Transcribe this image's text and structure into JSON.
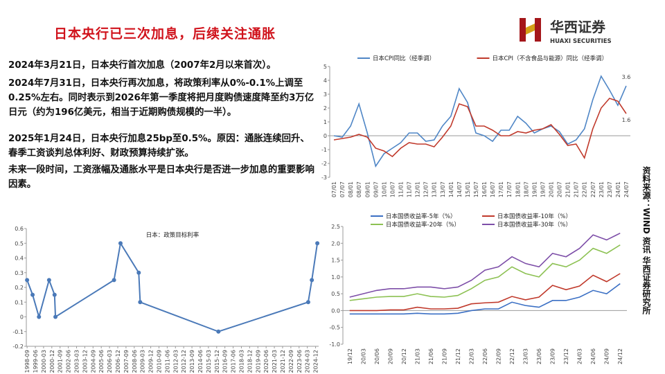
{
  "header": {
    "title": "日本央行已三次加息，后续关注通胀",
    "logo_cn": "华西证券",
    "logo_en": "HUAXI SECURITIES"
  },
  "paragraphs": [
    "2024年3月21日，日本央行首次加息（2007年2月以来首次）。",
    "2024年7月31日，日本央行再次加息，将政策利率从0%-0.1%上调至0.25%左右。同时表示到2026年第一季度将把月度购债速度降至约3万亿日元（约为196亿美元，相当于近期购债规模的一半）。",
    "2025年1月24日，日本央行加息25bp至0.5%。原因：通胀连续回升、春季工资谈判总体利好、财政预算持续扩张。",
    "未来一段时间，工资涨幅及通胀水平是日本央行是否进一步加息的重要影响因素。"
  ],
  "source": "资料来源：WIND 资讯  华西证券研究所",
  "chart_data": [
    {
      "type": "line",
      "legend": "top",
      "categories": [
        "07/01",
        "07/07",
        "08/01",
        "08/07",
        "09/01",
        "09/07",
        "10/01",
        "10/07",
        "11/01",
        "11/07",
        "12/01",
        "12/07",
        "13/01",
        "13/07",
        "14/01",
        "14/07",
        "15/01",
        "15/07",
        "16/01",
        "16/07",
        "17/01",
        "17/07",
        "18/01",
        "18/07",
        "19/01",
        "19/07",
        "20/01",
        "20/07",
        "21/01",
        "21/07",
        "22/01",
        "22/07",
        "23/01",
        "23/07",
        "24/01",
        "24/07"
      ],
      "series": [
        {
          "name": "日本CPI同比（经季调）",
          "color": "#4f86c6",
          "values": [
            0,
            -0.1,
            0.7,
            2.3,
            0.2,
            -2.2,
            -1.3,
            -0.9,
            -0.5,
            0.2,
            0.2,
            -0.4,
            -0.3,
            0.7,
            1.4,
            3.4,
            2.4,
            0.2,
            0,
            -0.4,
            0.4,
            0.4,
            1.4,
            0.9,
            0.2,
            0.5,
            0.7,
            0.3,
            -0.6,
            -0.3,
            0.5,
            2.6,
            4.3,
            3.3,
            2.2,
            3.6
          ]
        },
        {
          "name": "日本CPI（不含食品与能源）同比（经季调）",
          "color": "#c0392b",
          "values": [
            -0.3,
            -0.2,
            -0.1,
            0.1,
            -0.1,
            -0.9,
            -1.1,
            -1.5,
            -0.9,
            -0.5,
            -0.6,
            -0.6,
            -0.8,
            -0.1,
            0.7,
            2.3,
            2.1,
            0.7,
            0.7,
            0.4,
            0,
            0,
            0.3,
            0.2,
            0.4,
            0.5,
            0.8,
            0.1,
            -0.7,
            -0.6,
            -1.6,
            0.5,
            2.0,
            2.7,
            2.5,
            1.6
          ]
        }
      ],
      "annotations": [
        "3.6",
        "1.6"
      ],
      "ylim": [
        -3,
        5
      ],
      "yticks": [
        -3,
        -2,
        -1,
        0,
        1,
        2,
        3,
        4,
        5
      ],
      "grid": false
    },
    {
      "type": "line",
      "title": "日本：政策目标利率",
      "color": "#4a79b8",
      "markers": true,
      "x": [
        1998.67,
        1999.17,
        1999.75,
        2000.67,
        2001.17,
        2001.25,
        2006.58,
        2007.17,
        2008.83,
        2008.96,
        2016.08,
        2024.25,
        2024.58,
        2025.08
      ],
      "values": [
        0.25,
        0.15,
        0,
        0.25,
        0.15,
        0,
        0.25,
        0.5,
        0.3,
        0.1,
        -0.1,
        0.1,
        0.25,
        0.5
      ],
      "xlim": [
        1998.6,
        2025.2
      ],
      "xticks": [
        {
          "value": 1998.67,
          "label": "1998-09"
        },
        {
          "value": 1999.42,
          "label": "1999-06"
        },
        {
          "value": 2000.17,
          "label": "2000-03"
        },
        {
          "value": 2000.92,
          "label": "2000-12"
        },
        {
          "value": 2001.67,
          "label": "2001-09"
        },
        {
          "value": 2002.42,
          "label": "2002-06"
        },
        {
          "value": 2003.17,
          "label": "2003-03"
        },
        {
          "value": 2003.92,
          "label": "2003-12"
        },
        {
          "value": 2004.67,
          "label": "2004-09"
        },
        {
          "value": 2005.42,
          "label": "2005-06"
        },
        {
          "value": 2006.17,
          "label": "2006-03"
        },
        {
          "value": 2006.92,
          "label": "2006-12"
        },
        {
          "value": 2007.67,
          "label": "2007-09"
        },
        {
          "value": 2008.42,
          "label": "2008-06"
        },
        {
          "value": 2009.17,
          "label": "2009-03"
        },
        {
          "value": 2009.92,
          "label": "2009-12"
        },
        {
          "value": 2010.67,
          "label": "2010-09"
        },
        {
          "value": 2011.42,
          "label": "2011-06"
        },
        {
          "value": 2012.17,
          "label": "2012-03"
        },
        {
          "value": 2012.92,
          "label": "2012-12"
        },
        {
          "value": 2013.67,
          "label": "2013-09"
        },
        {
          "value": 2014.42,
          "label": "2014-06"
        },
        {
          "value": 2015.17,
          "label": "2015-03"
        },
        {
          "value": 2015.92,
          "label": "2015-12"
        },
        {
          "value": 2016.67,
          "label": "2016-09"
        },
        {
          "value": 2017.42,
          "label": "2017-06"
        },
        {
          "value": 2018.17,
          "label": "2018-03"
        },
        {
          "value": 2018.92,
          "label": "2018-12"
        },
        {
          "value": 2019.67,
          "label": "2019-09"
        },
        {
          "value": 2020.42,
          "label": "2020-06"
        },
        {
          "value": 2021.17,
          "label": "2021-03"
        },
        {
          "value": 2021.92,
          "label": "2021-12"
        },
        {
          "value": 2022.67,
          "label": "2022-09"
        },
        {
          "value": 2023.42,
          "label": "2023-06"
        },
        {
          "value": 2024.17,
          "label": "2024-03"
        },
        {
          "value": 2024.92,
          "label": "2024-12"
        }
      ],
      "ylim": [
        -0.2,
        0.6
      ],
      "yticks": [
        -0.2,
        -0.1,
        0,
        0.1,
        0.2,
        0.3,
        0.4,
        0.5,
        0.6
      ],
      "grid": false
    },
    {
      "type": "line",
      "legend": "top",
      "categories": [
        "19/12",
        "20/03",
        "20/06",
        "20/09",
        "20/12",
        "21/03",
        "21/06",
        "21/09",
        "21/12",
        "22/03",
        "22/06",
        "22/09",
        "22/12",
        "23/03",
        "23/06",
        "23/09",
        "23/12",
        "24/03",
        "24/06",
        "24/09",
        "24/12"
      ],
      "series": [
        {
          "name": "日本国债收益率-5年（%）",
          "color": "#3a6fc4",
          "values": [
            -0.1,
            -0.1,
            -0.1,
            -0.1,
            -0.1,
            -0.08,
            -0.1,
            -0.1,
            -0.08,
            0,
            0.05,
            0.05,
            0.25,
            0.15,
            0.1,
            0.3,
            0.3,
            0.4,
            0.6,
            0.5,
            0.8
          ]
        },
        {
          "name": "日本国债收益率-10年（%）",
          "color": "#c0392b",
          "values": [
            0,
            0,
            0,
            0.02,
            0.02,
            0.1,
            0.05,
            0.05,
            0.07,
            0.2,
            0.23,
            0.25,
            0.42,
            0.32,
            0.4,
            0.75,
            0.62,
            0.73,
            1.05,
            0.86,
            1.1
          ]
        },
        {
          "name": "日本国债收益率-20年（%）",
          "color": "#8cc152",
          "values": [
            0.3,
            0.35,
            0.4,
            0.42,
            0.42,
            0.5,
            0.42,
            0.4,
            0.45,
            0.65,
            0.9,
            1.0,
            1.3,
            1.1,
            1.0,
            1.4,
            1.3,
            1.5,
            1.85,
            1.7,
            1.95
          ]
        },
        {
          "name": "日本国债收益率-30年（%）",
          "color": "#7d4ea8",
          "values": [
            0.4,
            0.5,
            0.6,
            0.65,
            0.65,
            0.7,
            0.7,
            0.65,
            0.7,
            0.9,
            1.2,
            1.3,
            1.6,
            1.4,
            1.3,
            1.7,
            1.6,
            1.85,
            2.25,
            2.1,
            2.3
          ]
        }
      ],
      "ylim": [
        -1,
        2.5
      ],
      "yticks": [
        {
          "value": -1,
          "label": "-1.0"
        },
        -0.5,
        {
          "value": 0,
          "label": "0.0"
        },
        0.5,
        {
          "value": 1,
          "label": "1.0"
        },
        {
          "value": 1.5,
          "label": "1.5"
        },
        {
          "value": 2,
          "label": "2.0"
        },
        {
          "value": 2.5,
          "label": "2.5"
        }
      ],
      "grid": false
    }
  ]
}
